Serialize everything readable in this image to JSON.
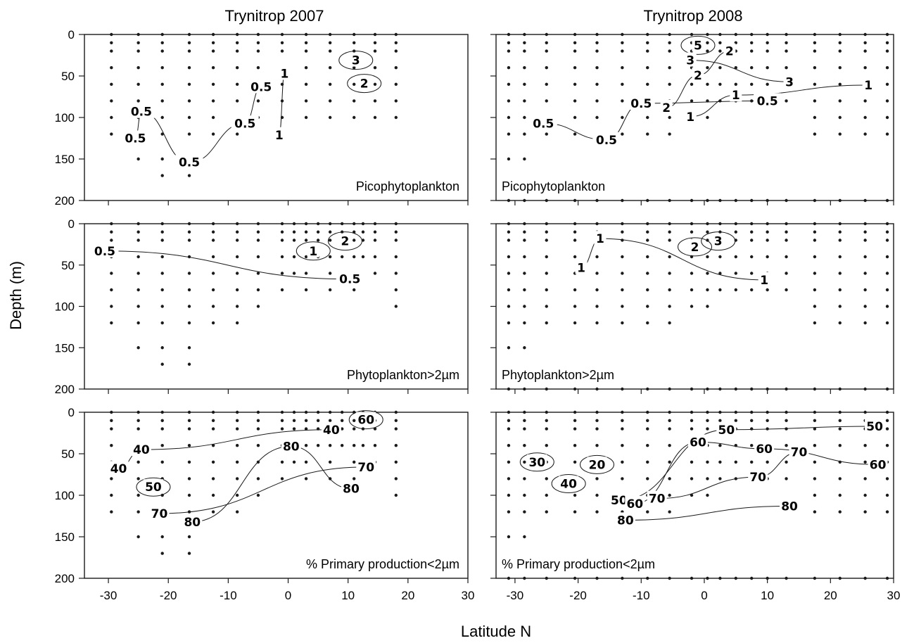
{
  "chart_data": {
    "type": "contour",
    "ylabel": "Depth (m)",
    "xlabel": "Latitude N",
    "columns": [
      "Trynitrop 2007",
      "Trynitrop 2008"
    ],
    "y_ticks": [
      "0",
      "50",
      "100",
      "150",
      "200"
    ],
    "x_ticks_2007": [
      "-30",
      "-20",
      "-10",
      "0",
      "10",
      "20",
      "30"
    ],
    "x_ticks_2008": [
      "-30",
      "-20",
      "-10",
      "0",
      "10",
      "20",
      "30"
    ],
    "xlim_2007": [
      -34,
      30
    ],
    "xlim_2008": [
      -33,
      30
    ],
    "ylim": [
      0,
      200
    ],
    "panels": [
      {
        "column": "Trynitrop 2007",
        "label": "Picophytoplankton",
        "stations_x": [
          -29.5,
          -25,
          -21,
          -16.5,
          -12.5,
          -8.5,
          -5,
          -1,
          3,
          7,
          11,
          14.5,
          18
        ],
        "stations_maxdepth": [
          120,
          150,
          170,
          170,
          140,
          120,
          110,
          100,
          100,
          100,
          100,
          100,
          100
        ],
        "contour_labels": [
          {
            "text": "0.5",
            "x": -24.5,
            "y": 93
          },
          {
            "text": "0.5",
            "x": -25.5,
            "y": 125
          },
          {
            "text": "0.5",
            "x": -16.5,
            "y": 154
          },
          {
            "text": "0.5",
            "x": -7.2,
            "y": 107
          },
          {
            "text": "0.5",
            "x": -4.5,
            "y": 63
          },
          {
            "text": "1",
            "x": -1.5,
            "y": 121
          },
          {
            "text": "1",
            "x": -0.6,
            "y": 47
          },
          {
            "text": "3",
            "x": 11.3,
            "y": 31
          },
          {
            "text": "2",
            "x": 12.7,
            "y": 59
          }
        ]
      },
      {
        "column": "Trynitrop 2008",
        "label": "Picophytoplankton",
        "stations_x": [
          -31,
          -28.5,
          -25,
          -20.5,
          -17,
          -13,
          -9,
          -5.5,
          -2,
          0.5,
          2.5,
          5,
          7.5,
          10,
          13,
          17.5,
          21.5,
          25.5,
          29
        ],
        "stations_maxdepth": [
          150,
          150,
          140,
          140,
          140,
          140,
          140,
          140,
          100,
          100,
          90,
          90,
          80,
          80,
          90,
          120,
          120,
          120,
          130
        ],
        "contour_labels": [
          {
            "text": "0.5",
            "x": -25.5,
            "y": 107
          },
          {
            "text": "0.5",
            "x": -15.5,
            "y": 127
          },
          {
            "text": "0.5",
            "x": -10,
            "y": 83
          },
          {
            "text": "2",
            "x": -6,
            "y": 88
          },
          {
            "text": "1",
            "x": -2.2,
            "y": 99
          },
          {
            "text": "2",
            "x": -1,
            "y": 49
          },
          {
            "text": "3",
            "x": -2.2,
            "y": 31
          },
          {
            "text": "5",
            "x": -1,
            "y": 13
          },
          {
            "text": "2",
            "x": 4,
            "y": 20
          },
          {
            "text": "1",
            "x": 5,
            "y": 73
          },
          {
            "text": "0.5",
            "x": 10,
            "y": 80
          },
          {
            "text": "3",
            "x": 13.5,
            "y": 57
          },
          {
            "text": "1",
            "x": 26,
            "y": 61
          }
        ]
      },
      {
        "column": "Trynitrop 2007",
        "label": "Phytoplankton>2µm",
        "stations_x": [
          -29.5,
          -25,
          -21,
          -16.5,
          -12.5,
          -8.5,
          -5,
          -1,
          1,
          3,
          5,
          7,
          9,
          11,
          12.5,
          14.5,
          18
        ],
        "stations_maxdepth": [
          120,
          150,
          170,
          170,
          140,
          120,
          110,
          80,
          60,
          90,
          40,
          90,
          40,
          90,
          40,
          60,
          100
        ],
        "contour_labels": [
          {
            "text": "0.5",
            "x": -30.6,
            "y": 33
          },
          {
            "text": "1",
            "x": 4.2,
            "y": 33
          },
          {
            "text": "2",
            "x": 9.5,
            "y": 21
          },
          {
            "text": "0.5",
            "x": 10.3,
            "y": 67
          }
        ]
      },
      {
        "column": "Trynitrop 2008",
        "label": "Phytoplankton>2µm",
        "stations_x": [
          -31,
          -28.5,
          -25,
          -20.5,
          -17,
          -13,
          -9,
          -5.5,
          -2,
          0.5,
          2.5,
          5,
          7.5,
          10,
          13,
          17.5,
          21.5,
          25.5,
          29
        ],
        "stations_maxdepth": [
          150,
          150,
          140,
          140,
          140,
          140,
          140,
          140,
          100,
          100,
          90,
          90,
          80,
          80,
          90,
          120,
          120,
          120,
          130
        ],
        "contour_labels": [
          {
            "text": "1",
            "x": -16.5,
            "y": 18
          },
          {
            "text": "1",
            "x": -19.5,
            "y": 53
          },
          {
            "text": "2",
            "x": -1.5,
            "y": 28
          },
          {
            "text": "3",
            "x": 2.2,
            "y": 21
          },
          {
            "text": "1",
            "x": 9.5,
            "y": 68
          }
        ]
      },
      {
        "column": "Trynitrop 2007",
        "label": "% Primary production<2µm",
        "stations_x": [
          -29.5,
          -25,
          -21,
          -16.5,
          -12.5,
          -8.5,
          -5,
          -1,
          1,
          3,
          5,
          7,
          9,
          11,
          12.5,
          14.5,
          18
        ],
        "stations_maxdepth": [
          120,
          150,
          170,
          170,
          140,
          120,
          110,
          80,
          60,
          90,
          40,
          90,
          40,
          90,
          40,
          60,
          100
        ],
        "contour_labels": [
          {
            "text": "40",
            "x": -24.5,
            "y": 45
          },
          {
            "text": "40",
            "x": -28.3,
            "y": 68
          },
          {
            "text": "50",
            "x": -22.5,
            "y": 90
          },
          {
            "text": "70",
            "x": -21.5,
            "y": 122
          },
          {
            "text": "80",
            "x": -16,
            "y": 132
          },
          {
            "text": "80",
            "x": 0.5,
            "y": 41
          },
          {
            "text": "40",
            "x": 7.2,
            "y": 21
          },
          {
            "text": "60",
            "x": 13,
            "y": 9
          },
          {
            "text": "70",
            "x": 13,
            "y": 66
          },
          {
            "text": "80",
            "x": 10.5,
            "y": 92
          }
        ]
      },
      {
        "column": "Trynitrop 2008",
        "label": "% Primary production<2µm",
        "stations_x": [
          -31,
          -28.5,
          -25,
          -20.5,
          -17,
          -13,
          -9,
          -5.5,
          -2,
          0.5,
          2.5,
          5,
          7.5,
          10,
          13,
          17.5,
          21.5,
          25.5,
          29
        ],
        "stations_maxdepth": [
          150,
          150,
          140,
          140,
          140,
          140,
          140,
          140,
          100,
          100,
          90,
          90,
          80,
          80,
          90,
          120,
          120,
          120,
          130
        ],
        "contour_labels": [
          {
            "text": "30",
            "x": -26.5,
            "y": 60
          },
          {
            "text": "20",
            "x": -17,
            "y": 63
          },
          {
            "text": "40",
            "x": -21.5,
            "y": 86
          },
          {
            "text": "50",
            "x": -13.5,
            "y": 106
          },
          {
            "text": "60",
            "x": -11,
            "y": 110
          },
          {
            "text": "70",
            "x": -7.5,
            "y": 104
          },
          {
            "text": "80",
            "x": -12.5,
            "y": 130
          },
          {
            "text": "60",
            "x": -1,
            "y": 36
          },
          {
            "text": "50",
            "x": 3.5,
            "y": 21
          },
          {
            "text": "60",
            "x": 9.5,
            "y": 44
          },
          {
            "text": "70",
            "x": 15,
            "y": 48
          },
          {
            "text": "70",
            "x": 8.5,
            "y": 78
          },
          {
            "text": "80",
            "x": 13.5,
            "y": 113
          },
          {
            "text": "50",
            "x": 27,
            "y": 17
          },
          {
            "text": "60",
            "x": 27.5,
            "y": 63
          }
        ]
      }
    ]
  }
}
